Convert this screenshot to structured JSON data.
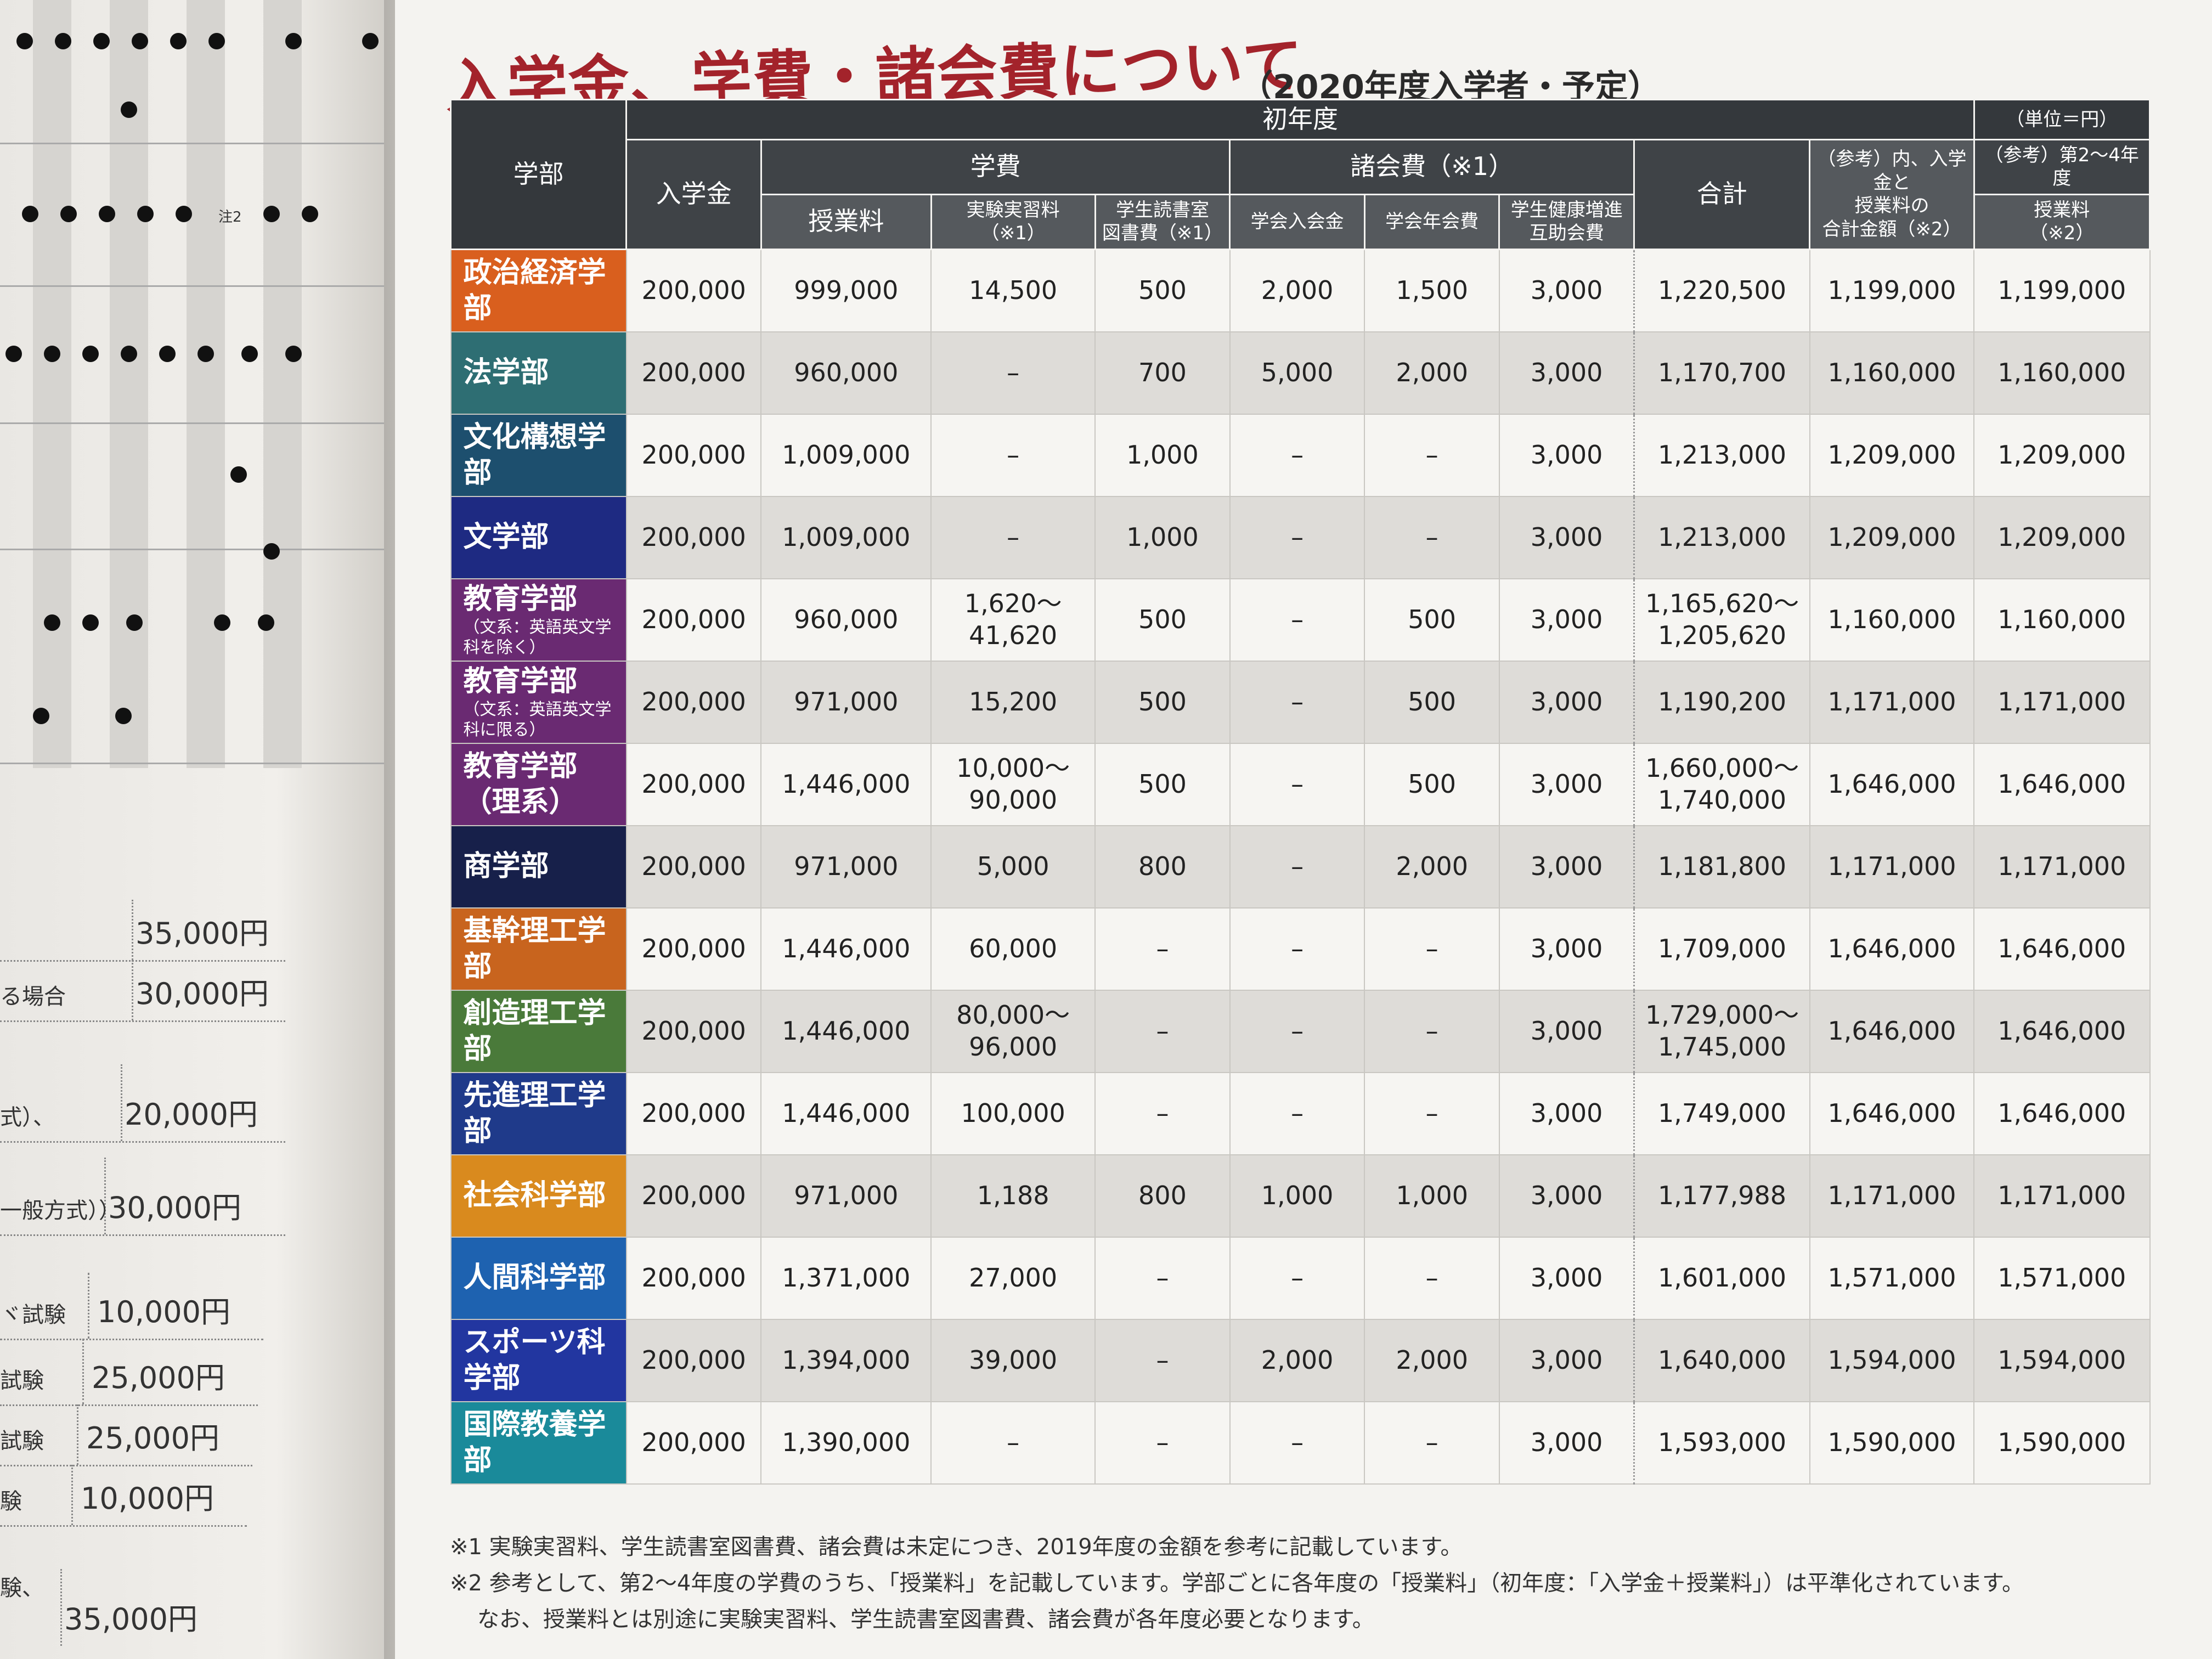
{
  "title": "入学金、学費・諸会費について",
  "subtitle": "（2020年度入学者・予定）",
  "unit_note": "（単位＝円）",
  "headers": {
    "faculty": "学部",
    "first_year": "初年度",
    "entrance_fee": "入学金",
    "tuition_group": "学費",
    "tuition": "授業料",
    "lab_fee": "実験実習料\n（※1）",
    "library_fee": "学生読書室\n図書費（※1）",
    "dues_group": "諸会費（※1）",
    "society_entry": "学会入会金",
    "society_annual": "学会年会費",
    "health_mutual": "学生健康増進\n互助会費",
    "total": "合計",
    "ref_included": "（参考）内、入学金と\n授業料の\n合計金額（※2）",
    "ref_years_group": "（参考）第2～4年度",
    "ref_tuition": "授業料\n（※2）"
  },
  "rows": [
    {
      "faculty": "政治経済学部",
      "sub": "",
      "color": "#d95f1e",
      "entrance": "200,000",
      "tuition": "999,000",
      "lab": "14,500",
      "library": "500",
      "soc_entry": "2,000",
      "soc_annual": "1,500",
      "health": "3,000",
      "total": "1,220,500",
      "ref_sum": "1,199,000",
      "ref_tuition": "1,199,000"
    },
    {
      "faculty": "法学部",
      "sub": "",
      "color": "#2e6e73",
      "entrance": "200,000",
      "tuition": "960,000",
      "lab": "–",
      "library": "700",
      "soc_entry": "5,000",
      "soc_annual": "2,000",
      "health": "3,000",
      "total": "1,170,700",
      "ref_sum": "1,160,000",
      "ref_tuition": "1,160,000"
    },
    {
      "faculty": "文化構想学部",
      "sub": "",
      "color": "#1d4f6e",
      "entrance": "200,000",
      "tuition": "1,009,000",
      "lab": "–",
      "library": "1,000",
      "soc_entry": "–",
      "soc_annual": "–",
      "health": "3,000",
      "total": "1,213,000",
      "ref_sum": "1,209,000",
      "ref_tuition": "1,209,000"
    },
    {
      "faculty": "文学部",
      "sub": "",
      "color": "#1e2a82",
      "entrance": "200,000",
      "tuition": "1,009,000",
      "lab": "–",
      "library": "1,000",
      "soc_entry": "–",
      "soc_annual": "–",
      "health": "3,000",
      "total": "1,213,000",
      "ref_sum": "1,209,000",
      "ref_tuition": "1,209,000"
    },
    {
      "faculty": "教育学部",
      "sub": "（文系：英語英文学科を除く）",
      "color": "#6a2a72",
      "entrance": "200,000",
      "tuition": "960,000",
      "lab": "1,620～\n41,620",
      "library": "500",
      "soc_entry": "–",
      "soc_annual": "500",
      "health": "3,000",
      "total": "1,165,620～\n1,205,620",
      "ref_sum": "1,160,000",
      "ref_tuition": "1,160,000"
    },
    {
      "faculty": "教育学部",
      "sub": "（文系：英語英文学科に限る）",
      "color": "#6a2a72",
      "entrance": "200,000",
      "tuition": "971,000",
      "lab": "15,200",
      "library": "500",
      "soc_entry": "–",
      "soc_annual": "500",
      "health": "3,000",
      "total": "1,190,200",
      "ref_sum": "1,171,000",
      "ref_tuition": "1,171,000"
    },
    {
      "faculty": "教育学部（理系）",
      "sub": "",
      "color": "#6a2a72",
      "entrance": "200,000",
      "tuition": "1,446,000",
      "lab": "10,000～\n90,000",
      "library": "500",
      "soc_entry": "–",
      "soc_annual": "500",
      "health": "3,000",
      "total": "1,660,000～\n1,740,000",
      "ref_sum": "1,646,000",
      "ref_tuition": "1,646,000"
    },
    {
      "faculty": "商学部",
      "sub": "",
      "color": "#17204a",
      "entrance": "200,000",
      "tuition": "971,000",
      "lab": "5,000",
      "library": "800",
      "soc_entry": "–",
      "soc_annual": "2,000",
      "health": "3,000",
      "total": "1,181,800",
      "ref_sum": "1,171,000",
      "ref_tuition": "1,171,000"
    },
    {
      "faculty": "基幹理工学部",
      "sub": "",
      "color": "#c8641e",
      "entrance": "200,000",
      "tuition": "1,446,000",
      "lab": "60,000",
      "library": "–",
      "soc_entry": "–",
      "soc_annual": "–",
      "health": "3,000",
      "total": "1,709,000",
      "ref_sum": "1,646,000",
      "ref_tuition": "1,646,000"
    },
    {
      "faculty": "創造理工学部",
      "sub": "",
      "color": "#4a7a3a",
      "entrance": "200,000",
      "tuition": "1,446,000",
      "lab": "80,000～\n96,000",
      "library": "–",
      "soc_entry": "–",
      "soc_annual": "–",
      "health": "3,000",
      "total": "1,729,000～\n1,745,000",
      "ref_sum": "1,646,000",
      "ref_tuition": "1,646,000"
    },
    {
      "faculty": "先進理工学部",
      "sub": "",
      "color": "#1f3a8a",
      "entrance": "200,000",
      "tuition": "1,446,000",
      "lab": "100,000",
      "library": "–",
      "soc_entry": "–",
      "soc_annual": "–",
      "health": "3,000",
      "total": "1,749,000",
      "ref_sum": "1,646,000",
      "ref_tuition": "1,646,000"
    },
    {
      "faculty": "社会科学部",
      "sub": "",
      "color": "#d98a1e",
      "entrance": "200,000",
      "tuition": "971,000",
      "lab": "1,188",
      "library": "800",
      "soc_entry": "1,000",
      "soc_annual": "1,000",
      "health": "3,000",
      "total": "1,177,988",
      "ref_sum": "1,171,000",
      "ref_tuition": "1,171,000"
    },
    {
      "faculty": "人間科学部",
      "sub": "",
      "color": "#1e62b0",
      "entrance": "200,000",
      "tuition": "1,371,000",
      "lab": "27,000",
      "library": "–",
      "soc_entry": "–",
      "soc_annual": "–",
      "health": "3,000",
      "total": "1,601,000",
      "ref_sum": "1,571,000",
      "ref_tuition": "1,571,000"
    },
    {
      "faculty": "スポーツ科学部",
      "sub": "",
      "color": "#2236a0",
      "entrance": "200,000",
      "tuition": "1,394,000",
      "lab": "39,000",
      "library": "–",
      "soc_entry": "2,000",
      "soc_annual": "2,000",
      "health": "3,000",
      "total": "1,640,000",
      "ref_sum": "1,594,000",
      "ref_tuition": "1,594,000"
    },
    {
      "faculty": "国際教養学部",
      "sub": "",
      "color": "#1a8a9a",
      "entrance": "200,000",
      "tuition": "1,390,000",
      "lab": "–",
      "library": "–",
      "soc_entry": "–",
      "soc_annual": "–",
      "health": "3,000",
      "total": "1,593,000",
      "ref_sum": "1,590,000",
      "ref_tuition": "1,590,000"
    }
  ],
  "footnotes": [
    "※1 実験実習料、学生読書室図書費、諸会費は未定につき、2019年度の金額を参考に記載しています。",
    "※2 参考として、第2～4年度の学費のうち、「授業料」を記載しています。学部ごとに各年度の「授業料」（初年度：「入学金＋授業料」）は平準化されています。",
    "なお、授業料とは別途に実験実習料、学生読書室図書費、諸会費が各年度必要となります。"
  ],
  "left_page": {
    "note": "注2",
    "fees": [
      {
        "label": "",
        "amount": "35,000円"
      },
      {
        "label": "る場合",
        "amount": "30,000円"
      },
      {
        "label": "式）、",
        "amount": "20,000円"
      },
      {
        "label": "一般方式））",
        "amount": "30,000円"
      },
      {
        "label": "ヾ試験",
        "amount": "10,000円"
      },
      {
        "label": "試験",
        "amount": "25,000円"
      },
      {
        "label": "試験",
        "amount": "25,000円"
      },
      {
        "label": "験",
        "amount": "10,000円"
      },
      {
        "label": "験、",
        "amount": "35,000円"
      }
    ]
  }
}
